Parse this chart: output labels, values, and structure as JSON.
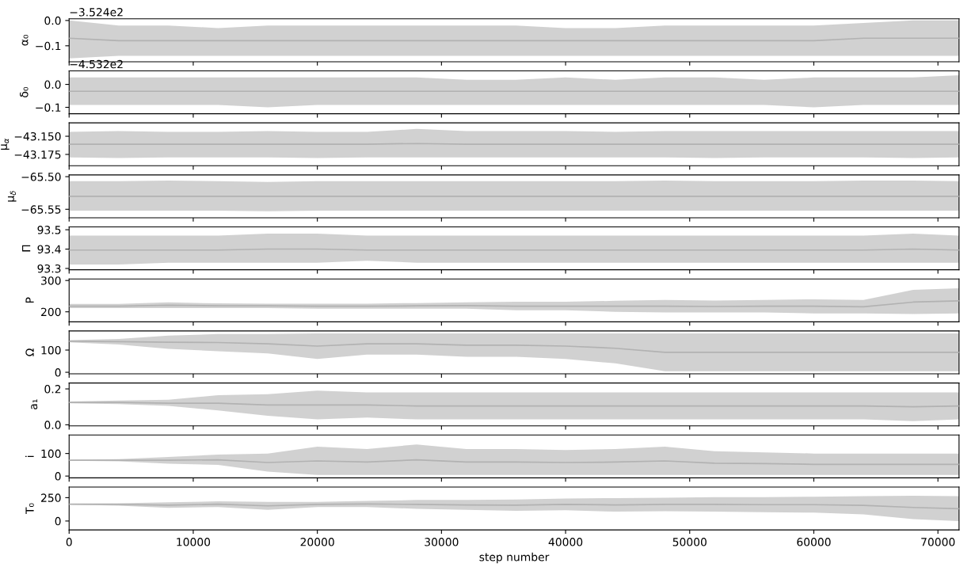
{
  "chart_data": [
    {
      "type": "line",
      "ylabel": "α₀",
      "annotations": [
        "−3.524e2"
      ],
      "x": [
        0,
        4000,
        8000,
        12000,
        16000,
        20000,
        24000,
        28000,
        32000,
        36000,
        40000,
        44000,
        48000,
        52000,
        56000,
        60000,
        64000,
        68000,
        71700
      ],
      "xlim": [
        0,
        71700
      ],
      "xticks": [
        0,
        10000,
        20000,
        30000,
        40000,
        50000,
        60000,
        70000
      ],
      "ylim": [
        -0.163,
        0.0065
      ],
      "yticks": [
        {
          "value": -0.1,
          "label": "−0.1"
        },
        {
          "value": 0,
          "label": "0.0"
        }
      ],
      "tick_labels": "y",
      "series": [
        {
          "color": "#b2b2b2",
          "values": [
            -0.07,
            -0.08,
            -0.08,
            -0.08,
            -0.08,
            -0.08,
            -0.08,
            -0.08,
            -0.08,
            -0.08,
            -0.08,
            -0.08,
            -0.08,
            -0.08,
            -0.08,
            -0.08,
            -0.07,
            -0.07,
            -0.07
          ],
          "lower": [
            -0.15,
            -0.14,
            -0.14,
            -0.14,
            -0.14,
            -0.14,
            -0.14,
            -0.14,
            -0.14,
            -0.14,
            -0.14,
            -0.14,
            -0.14,
            -0.14,
            -0.14,
            -0.14,
            -0.14,
            -0.14,
            -0.14
          ],
          "upper": [
            0.0,
            -0.02,
            -0.02,
            -0.03,
            -0.02,
            -0.02,
            -0.02,
            -0.02,
            -0.02,
            -0.02,
            -0.03,
            -0.03,
            -0.02,
            -0.02,
            -0.02,
            -0.02,
            -0.01,
            0.0,
            0.0
          ]
        }
      ]
    },
    {
      "type": "line",
      "ylabel": "δ₀",
      "annotations": [
        "−4.532e2"
      ],
      "x": [
        0,
        4000,
        8000,
        12000,
        16000,
        20000,
        24000,
        28000,
        32000,
        36000,
        40000,
        44000,
        48000,
        52000,
        56000,
        60000,
        64000,
        68000,
        71700
      ],
      "xlim": [
        0,
        71700
      ],
      "xticks": [
        0,
        10000,
        20000,
        30000,
        40000,
        50000,
        60000,
        70000
      ],
      "ylim": [
        -0.128,
        0.059
      ],
      "yticks": [
        {
          "value": -0.1,
          "label": "−0.1"
        },
        {
          "value": 0,
          "label": "0.0"
        }
      ],
      "tick_labels": "y",
      "series": [
        {
          "color": "#b2b2b2",
          "values": [
            -0.03,
            -0.03,
            -0.03,
            -0.03,
            -0.03,
            -0.03,
            -0.03,
            -0.03,
            -0.03,
            -0.03,
            -0.03,
            -0.03,
            -0.03,
            -0.03,
            -0.03,
            -0.03,
            -0.03,
            -0.03,
            -0.03
          ],
          "lower": [
            -0.09,
            -0.09,
            -0.09,
            -0.09,
            -0.1,
            -0.09,
            -0.09,
            -0.09,
            -0.09,
            -0.09,
            -0.09,
            -0.09,
            -0.09,
            -0.09,
            -0.09,
            -0.1,
            -0.09,
            -0.09,
            -0.09
          ],
          "upper": [
            0.03,
            0.03,
            0.03,
            0.03,
            0.03,
            0.03,
            0.03,
            0.03,
            0.02,
            0.02,
            0.03,
            0.02,
            0.03,
            0.03,
            0.02,
            0.03,
            0.03,
            0.03,
            0.04
          ]
        }
      ]
    },
    {
      "type": "line",
      "ylabel": "μ$_{α}$",
      "x": [
        0,
        4000,
        8000,
        12000,
        16000,
        20000,
        24000,
        28000,
        32000,
        36000,
        40000,
        44000,
        48000,
        52000,
        56000,
        60000,
        64000,
        68000,
        71700
      ],
      "xlim": [
        0,
        71700
      ],
      "xticks": [
        0,
        10000,
        20000,
        30000,
        40000,
        50000,
        60000,
        70000
      ],
      "ylim": [
        -43.1906,
        -43.1316
      ],
      "yticks": [
        {
          "value": -43.175,
          "label": "−43.175"
        },
        {
          "value": -43.15,
          "label": "−43.150"
        }
      ],
      "tick_labels": "y",
      "series": [
        {
          "color": "#b2b2b2",
          "values": [
            -43.161,
            -43.161,
            -43.161,
            -43.161,
            -43.161,
            -43.161,
            -43.161,
            -43.16,
            -43.161,
            -43.161,
            -43.161,
            -43.161,
            -43.161,
            -43.161,
            -43.161,
            -43.161,
            -43.161,
            -43.161,
            -43.161
          ],
          "lower": [
            -43.179,
            -43.18,
            -43.179,
            -43.179,
            -43.179,
            -43.18,
            -43.179,
            -43.179,
            -43.179,
            -43.179,
            -43.179,
            -43.179,
            -43.179,
            -43.18,
            -43.179,
            -43.179,
            -43.179,
            -43.18,
            -43.179
          ],
          "upper": [
            -43.144,
            -43.143,
            -43.144,
            -43.144,
            -43.143,
            -43.144,
            -43.144,
            -43.14,
            -43.143,
            -43.143,
            -43.143,
            -43.144,
            -43.143,
            -43.143,
            -43.143,
            -43.143,
            -43.143,
            -43.143,
            -43.143
          ]
        }
      ]
    },
    {
      "type": "line",
      "ylabel": "μ$_{δ}$",
      "x": [
        0,
        4000,
        8000,
        12000,
        16000,
        20000,
        24000,
        28000,
        32000,
        36000,
        40000,
        44000,
        48000,
        52000,
        56000,
        60000,
        64000,
        68000,
        71700
      ],
      "xlim": [
        0,
        71700
      ],
      "xticks": [
        0,
        10000,
        20000,
        30000,
        40000,
        50000,
        60000,
        70000
      ],
      "ylim": [
        -65.563,
        -65.4973
      ],
      "yticks": [
        {
          "value": -65.55,
          "label": "−65.55"
        },
        {
          "value": -65.5,
          "label": "−65.50"
        }
      ],
      "tick_labels": "y",
      "series": [
        {
          "color": "#b2b2b2",
          "values": [
            -65.53,
            -65.53,
            -65.53,
            -65.53,
            -65.53,
            -65.53,
            -65.53,
            -65.53,
            -65.53,
            -65.53,
            -65.53,
            -65.53,
            -65.53,
            -65.53,
            -65.53,
            -65.53,
            -65.53,
            -65.53,
            -65.53
          ],
          "lower": [
            -65.552,
            -65.552,
            -65.552,
            -65.552,
            -65.553,
            -65.552,
            -65.552,
            -65.552,
            -65.552,
            -65.552,
            -65.552,
            -65.552,
            -65.552,
            -65.552,
            -65.552,
            -65.552,
            -65.552,
            -65.552,
            -65.552
          ],
          "upper": [
            -65.507,
            -65.507,
            -65.506,
            -65.507,
            -65.508,
            -65.507,
            -65.507,
            -65.507,
            -65.507,
            -65.507,
            -65.507,
            -65.507,
            -65.506,
            -65.507,
            -65.507,
            -65.507,
            -65.506,
            -65.506,
            -65.507
          ]
        }
      ]
    },
    {
      "type": "line",
      "ylabel": "Π",
      "x": [
        0,
        4000,
        8000,
        12000,
        16000,
        20000,
        24000,
        28000,
        32000,
        36000,
        40000,
        44000,
        48000,
        52000,
        56000,
        60000,
        64000,
        68000,
        71700
      ],
      "xlim": [
        0,
        71700
      ],
      "xticks": [
        0,
        10000,
        20000,
        30000,
        40000,
        50000,
        60000,
        70000
      ],
      "ylim": [
        93.293,
        93.5146
      ],
      "yticks": [
        93.3,
        93.4,
        93.5
      ],
      "tick_labels": "y",
      "series": [
        {
          "color": "#b2b2b2",
          "values": [
            93.395,
            93.395,
            93.395,
            93.395,
            93.4,
            93.4,
            93.395,
            93.395,
            93.395,
            93.395,
            93.395,
            93.395,
            93.395,
            93.395,
            93.395,
            93.395,
            93.395,
            93.4,
            93.395
          ],
          "lower": [
            93.32,
            93.32,
            93.33,
            93.33,
            93.33,
            93.33,
            93.34,
            93.33,
            93.33,
            93.33,
            93.33,
            93.33,
            93.33,
            93.33,
            93.33,
            93.33,
            93.33,
            93.33,
            93.33
          ],
          "upper": [
            93.47,
            93.47,
            93.47,
            93.47,
            93.48,
            93.48,
            93.47,
            93.47,
            93.47,
            93.47,
            93.47,
            93.47,
            93.47,
            93.47,
            93.47,
            93.47,
            93.47,
            93.48,
            93.47
          ]
        }
      ]
    },
    {
      "type": "line",
      "ylabel": "P",
      "x": [
        0,
        4000,
        8000,
        12000,
        16000,
        20000,
        24000,
        28000,
        32000,
        36000,
        40000,
        44000,
        48000,
        52000,
        56000,
        60000,
        64000,
        68000,
        71700
      ],
      "xlim": [
        0,
        71700
      ],
      "xticks": [
        0,
        10000,
        20000,
        30000,
        40000,
        50000,
        60000,
        70000
      ],
      "ylim": [
        168,
        305
      ],
      "yticks": [
        200,
        300
      ],
      "tick_labels": "y",
      "series": [
        {
          "color": "#b2b2b2",
          "values": [
            218,
            218,
            221,
            219,
            219,
            218,
            218,
            219,
            220,
            218,
            218,
            218,
            218,
            217,
            218,
            218,
            216,
            231,
            235
          ],
          "lower": [
            212,
            212,
            212,
            212,
            212,
            210,
            210,
            210,
            210,
            205,
            205,
            200,
            198,
            198,
            198,
            195,
            195,
            193,
            195
          ],
          "upper": [
            225,
            225,
            230,
            227,
            226,
            226,
            226,
            228,
            230,
            232,
            232,
            235,
            238,
            236,
            238,
            240,
            238,
            270,
            275
          ]
        }
      ]
    },
    {
      "type": "line",
      "ylabel": "Ω",
      "x": [
        0,
        4000,
        8000,
        12000,
        16000,
        20000,
        24000,
        28000,
        32000,
        36000,
        40000,
        44000,
        48000,
        52000,
        56000,
        60000,
        64000,
        68000,
        71700
      ],
      "xlim": [
        0,
        71700
      ],
      "xticks": [
        0,
        10000,
        20000,
        30000,
        40000,
        50000,
        60000,
        70000
      ],
      "ylim": [
        -7,
        186
      ],
      "yticks": [
        0,
        100
      ],
      "tick_labels": "y",
      "series": [
        {
          "color": "#b2b2b2",
          "values": [
            140,
            138,
            135,
            134,
            128,
            118,
            128,
            128,
            122,
            122,
            118,
            108,
            90,
            90,
            90,
            90,
            90,
            90,
            90
          ],
          "lower": [
            135,
            125,
            105,
            95,
            85,
            60,
            80,
            80,
            70,
            70,
            60,
            40,
            5,
            5,
            5,
            5,
            5,
            5,
            5
          ],
          "upper": [
            145,
            150,
            165,
            172,
            172,
            175,
            175,
            175,
            175,
            175,
            175,
            175,
            175,
            175,
            175,
            175,
            175,
            175,
            175
          ]
        }
      ]
    },
    {
      "type": "line",
      "ylabel": "a₁",
      "x": [
        0,
        4000,
        8000,
        12000,
        16000,
        20000,
        24000,
        28000,
        32000,
        36000,
        40000,
        44000,
        48000,
        52000,
        56000,
        60000,
        64000,
        68000,
        71700
      ],
      "xlim": [
        0,
        71700
      ],
      "xticks": [
        0,
        10000,
        20000,
        30000,
        40000,
        50000,
        60000,
        70000
      ],
      "ylim": [
        -0.006,
        0.233
      ],
      "yticks": [
        {
          "value": 0,
          "label": "0.0"
        },
        {
          "value": 0.2,
          "label": "0.2"
        }
      ],
      "tick_labels": "y",
      "series": [
        {
          "color": "#b2b2b2",
          "values": [
            0.125,
            0.125,
            0.12,
            0.12,
            0.11,
            0.11,
            0.11,
            0.105,
            0.105,
            0.105,
            0.105,
            0.105,
            0.105,
            0.105,
            0.105,
            0.105,
            0.105,
            0.1,
            0.105
          ],
          "lower": [
            0.12,
            0.115,
            0.105,
            0.08,
            0.05,
            0.03,
            0.04,
            0.03,
            0.03,
            0.03,
            0.03,
            0.03,
            0.03,
            0.03,
            0.03,
            0.03,
            0.03,
            0.02,
            0.03
          ],
          "upper": [
            0.13,
            0.135,
            0.14,
            0.165,
            0.17,
            0.19,
            0.18,
            0.18,
            0.18,
            0.18,
            0.18,
            0.18,
            0.18,
            0.18,
            0.18,
            0.18,
            0.18,
            0.18,
            0.18
          ]
        }
      ]
    },
    {
      "type": "line",
      "ylabel": "i",
      "x": [
        0,
        4000,
        8000,
        12000,
        16000,
        20000,
        24000,
        28000,
        32000,
        36000,
        40000,
        44000,
        48000,
        52000,
        56000,
        60000,
        64000,
        68000,
        71700
      ],
      "xlim": [
        0,
        71700
      ],
      "xticks": [
        0,
        10000,
        20000,
        30000,
        40000,
        50000,
        60000,
        70000
      ],
      "ylim": [
        -8,
        182
      ],
      "yticks": [
        0,
        100
      ],
      "tick_labels": "y",
      "series": [
        {
          "color": "#b2b2b2",
          "values": [
            70,
            70,
            70,
            72,
            60,
            67,
            62,
            72,
            62,
            62,
            60,
            62,
            67,
            57,
            55,
            52,
            52,
            52,
            52
          ],
          "lower": [
            68,
            65,
            55,
            50,
            20,
            5,
            5,
            5,
            5,
            5,
            5,
            5,
            5,
            5,
            5,
            5,
            5,
            5,
            5
          ],
          "upper": [
            72,
            75,
            85,
            95,
            100,
            130,
            120,
            140,
            120,
            120,
            115,
            120,
            130,
            110,
            105,
            100,
            100,
            100,
            100
          ]
        }
      ]
    },
    {
      "type": "line",
      "ylabel": "T₀",
      "xlabel": "step number",
      "x": [
        0,
        4000,
        8000,
        12000,
        16000,
        20000,
        24000,
        28000,
        32000,
        36000,
        40000,
        44000,
        48000,
        52000,
        56000,
        60000,
        64000,
        68000,
        71700
      ],
      "xlim": [
        0,
        71700
      ],
      "xticks": [
        0,
        10000,
        20000,
        30000,
        40000,
        50000,
        60000,
        70000
      ],
      "ylim": [
        -95,
        364
      ],
      "yticks": [
        0,
        250
      ],
      "series": [
        {
          "color": "#b2b2b2",
          "values": [
            180,
            178,
            170,
            180,
            162,
            178,
            182,
            178,
            172,
            170,
            178,
            172,
            178,
            178,
            175,
            175,
            168,
            145,
            132
          ],
          "lower": [
            175,
            165,
            140,
            150,
            120,
            150,
            150,
            130,
            120,
            110,
            115,
            100,
            105,
            100,
            95,
            90,
            70,
            20,
            0
          ],
          "upper": [
            185,
            190,
            200,
            210,
            205,
            205,
            215,
            225,
            225,
            230,
            240,
            245,
            250,
            255,
            255,
            260,
            265,
            270,
            265
          ]
        }
      ]
    }
  ]
}
